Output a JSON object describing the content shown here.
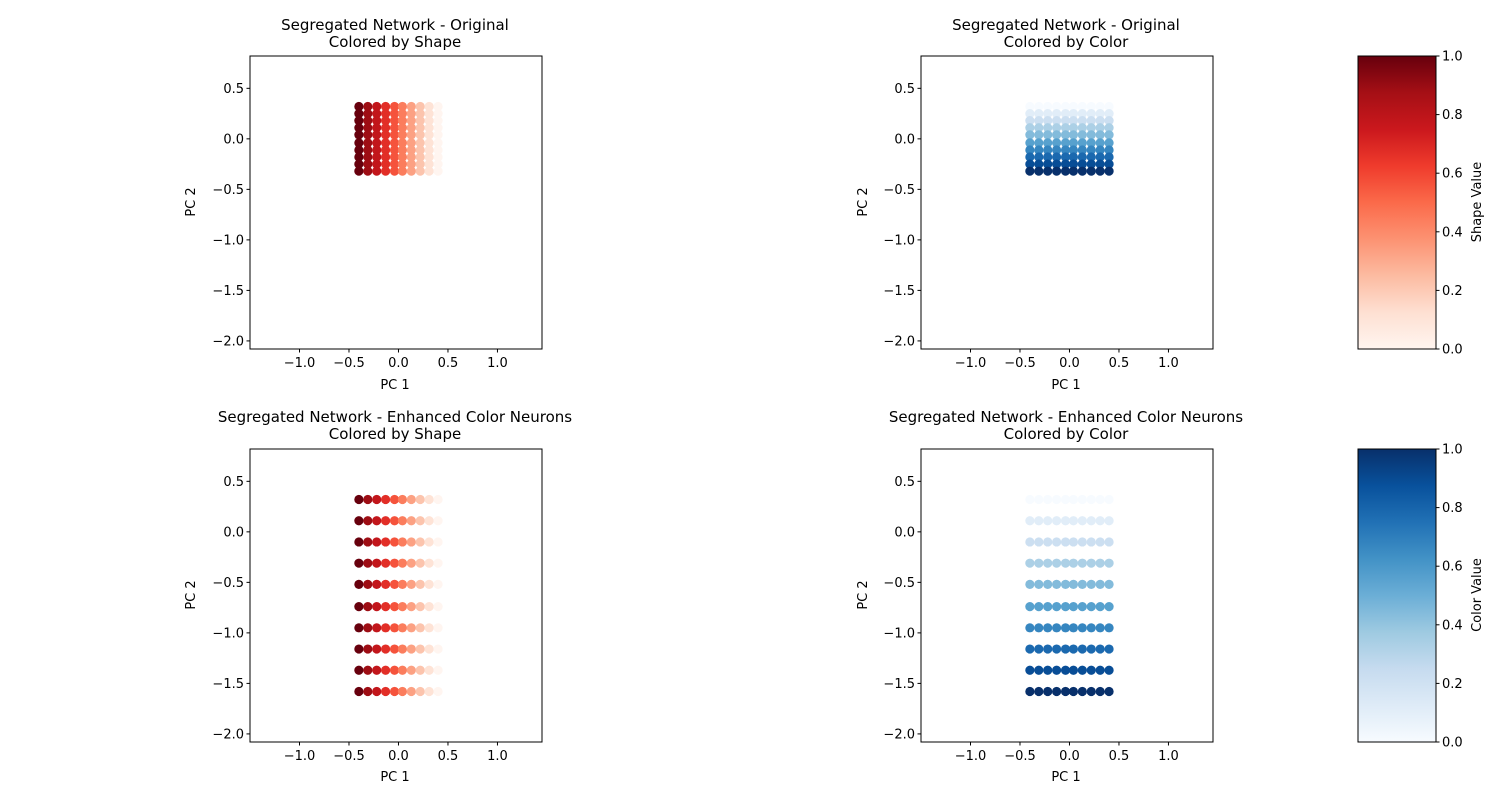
{
  "figure": {
    "background": "#ffffff"
  },
  "colorbars": [
    {
      "label": "Shape Value",
      "cmap": "Reds",
      "ticks": [
        "0.0",
        "0.2",
        "0.4",
        "0.6",
        "0.8",
        "1.0"
      ]
    },
    {
      "label": "Color Value",
      "cmap": "Blues",
      "ticks": [
        "0.0",
        "0.2",
        "0.4",
        "0.6",
        "0.8",
        "1.0"
      ]
    }
  ],
  "chart_data": [
    {
      "type": "scatter",
      "title_line1": "Segregated Network - Original",
      "title_line2": "Colored by Shape",
      "xlabel": "PC 1",
      "ylabel": "PC 2",
      "xlim": [
        -1.5,
        1.45
      ],
      "ylim": [
        -2.08,
        0.82
      ],
      "xticks": [
        -1.0,
        -0.5,
        0.0,
        0.5,
        1.0
      ],
      "yticks": [
        -2.0,
        -1.5,
        -1.0,
        -0.5,
        0.0,
        0.5
      ],
      "xtick_labels": [
        "−1.0",
        "−0.5",
        "0.0",
        "0.5",
        "1.0"
      ],
      "ytick_labels": [
        "−2.0",
        "−1.5",
        "−1.0",
        "−0.5",
        "0.0",
        "0.5"
      ],
      "grid": false,
      "cmap": "Reds",
      "color_by": "shape",
      "x": [
        -0.4,
        -0.31,
        -0.22,
        -0.13,
        -0.04,
        0.04,
        0.13,
        0.22,
        0.31,
        0.4
      ],
      "y": [
        0.32,
        0.25,
        0.18,
        0.11,
        0.04,
        -0.04,
        -0.11,
        -0.18,
        -0.25,
        -0.32
      ],
      "shape_values": [
        1.0,
        0.89,
        0.78,
        0.67,
        0.56,
        0.44,
        0.33,
        0.22,
        0.11,
        0.0
      ],
      "color_values": [
        0.0,
        0.11,
        0.22,
        0.33,
        0.44,
        0.56,
        0.67,
        0.78,
        0.89,
        1.0
      ]
    },
    {
      "type": "scatter",
      "title_line1": "Segregated Network - Original",
      "title_line2": "Colored by Color",
      "xlabel": "PC 1",
      "ylabel": "PC 2",
      "xlim": [
        -1.5,
        1.45
      ],
      "ylim": [
        -2.08,
        0.82
      ],
      "xticks": [
        -1.0,
        -0.5,
        0.0,
        0.5,
        1.0
      ],
      "yticks": [
        -2.0,
        -1.5,
        -1.0,
        -0.5,
        0.0,
        0.5
      ],
      "xtick_labels": [
        "−1.0",
        "−0.5",
        "0.0",
        "0.5",
        "1.0"
      ],
      "ytick_labels": [
        "−2.0",
        "−1.5",
        "−1.0",
        "−0.5",
        "0.0",
        "0.5"
      ],
      "grid": false,
      "cmap": "Blues",
      "color_by": "color",
      "x": [
        -0.4,
        -0.31,
        -0.22,
        -0.13,
        -0.04,
        0.04,
        0.13,
        0.22,
        0.31,
        0.4
      ],
      "y": [
        0.32,
        0.25,
        0.18,
        0.11,
        0.04,
        -0.04,
        -0.11,
        -0.18,
        -0.25,
        -0.32
      ],
      "shape_values": [
        1.0,
        0.89,
        0.78,
        0.67,
        0.56,
        0.44,
        0.33,
        0.22,
        0.11,
        0.0
      ],
      "color_values": [
        0.0,
        0.11,
        0.22,
        0.33,
        0.44,
        0.56,
        0.67,
        0.78,
        0.89,
        1.0
      ]
    },
    {
      "type": "scatter",
      "title_line1": "Segregated Network - Enhanced Color Neurons",
      "title_line2": "Colored by Shape",
      "xlabel": "PC 1",
      "ylabel": "PC 2",
      "xlim": [
        -1.5,
        1.45
      ],
      "ylim": [
        -2.08,
        0.82
      ],
      "xticks": [
        -1.0,
        -0.5,
        0.0,
        0.5,
        1.0
      ],
      "yticks": [
        -2.0,
        -1.5,
        -1.0,
        -0.5,
        0.0,
        0.5
      ],
      "xtick_labels": [
        "−1.0",
        "−0.5",
        "0.0",
        "0.5",
        "1.0"
      ],
      "ytick_labels": [
        "−2.0",
        "−1.5",
        "−1.0",
        "−0.5",
        "0.0",
        "0.5"
      ],
      "grid": false,
      "cmap": "Reds",
      "color_by": "shape",
      "x": [
        -0.4,
        -0.31,
        -0.22,
        -0.13,
        -0.04,
        0.04,
        0.13,
        0.22,
        0.31,
        0.4
      ],
      "y": [
        0.32,
        0.11,
        -0.1,
        -0.31,
        -0.52,
        -0.74,
        -0.95,
        -1.16,
        -1.37,
        -1.58
      ],
      "shape_values": [
        1.0,
        0.89,
        0.78,
        0.67,
        0.56,
        0.44,
        0.33,
        0.22,
        0.11,
        0.0
      ],
      "color_values": [
        0.0,
        0.11,
        0.22,
        0.33,
        0.44,
        0.56,
        0.67,
        0.78,
        0.89,
        1.0
      ]
    },
    {
      "type": "scatter",
      "title_line1": "Segregated Network - Enhanced Color Neurons",
      "title_line2": "Colored by Color",
      "xlabel": "PC 1",
      "ylabel": "PC 2",
      "xlim": [
        -1.5,
        1.45
      ],
      "ylim": [
        -2.08,
        0.82
      ],
      "xticks": [
        -1.0,
        -0.5,
        0.0,
        0.5,
        1.0
      ],
      "yticks": [
        -2.0,
        -1.5,
        -1.0,
        -0.5,
        0.0,
        0.5
      ],
      "xtick_labels": [
        "−1.0",
        "−0.5",
        "0.0",
        "0.5",
        "1.0"
      ],
      "ytick_labels": [
        "−2.0",
        "−1.5",
        "−1.0",
        "−0.5",
        "0.0",
        "0.5"
      ],
      "grid": false,
      "cmap": "Blues",
      "color_by": "color",
      "x": [
        -0.4,
        -0.31,
        -0.22,
        -0.13,
        -0.04,
        0.04,
        0.13,
        0.22,
        0.31,
        0.4
      ],
      "y": [
        0.32,
        0.11,
        -0.1,
        -0.31,
        -0.52,
        -0.74,
        -0.95,
        -1.16,
        -1.37,
        -1.58
      ],
      "shape_values": [
        1.0,
        0.89,
        0.78,
        0.67,
        0.56,
        0.44,
        0.33,
        0.22,
        0.11,
        0.0
      ],
      "color_values": [
        0.0,
        0.11,
        0.22,
        0.33,
        0.44,
        0.56,
        0.67,
        0.78,
        0.89,
        1.0
      ]
    }
  ]
}
